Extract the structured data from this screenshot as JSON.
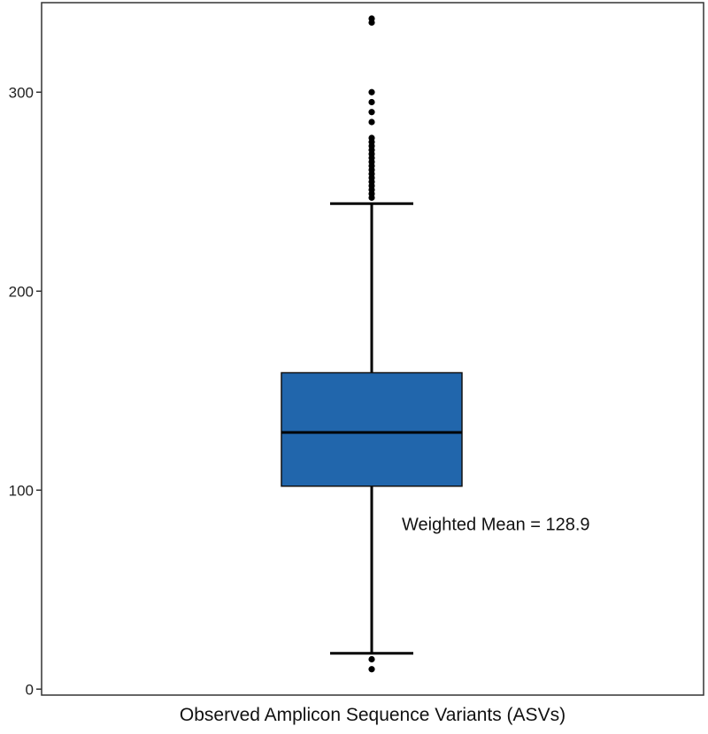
{
  "chart_data": {
    "type": "box",
    "xlabel": "Observed Amplicon Sequence Variants (ASVs)",
    "ylabel": "",
    "ylim": [
      -3,
      345
    ],
    "yticks": [
      0,
      100,
      200,
      300
    ],
    "grid": false,
    "legend": "none",
    "box": {
      "whisker_low": 18,
      "q1": 102,
      "median": 129,
      "q3": 159,
      "whisker_high": 244,
      "fill_color": "#2166ac",
      "outliers": [
        10,
        15,
        247,
        249,
        251,
        253,
        255,
        257,
        259,
        261,
        263,
        265,
        267,
        269,
        271,
        273,
        275,
        277,
        285,
        290,
        295,
        300,
        335,
        337
      ]
    },
    "annotations": [
      {
        "text": "Weighted Mean = 128.9",
        "y": 83
      }
    ]
  }
}
